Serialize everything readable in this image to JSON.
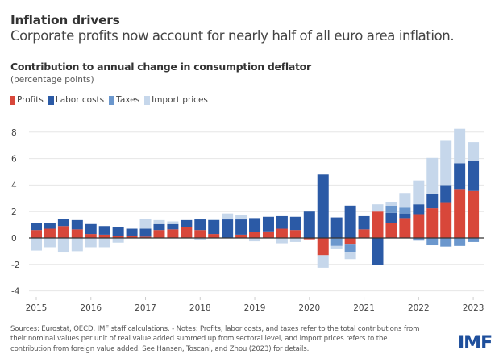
{
  "header": {
    "title": "Inflation drivers",
    "subtitle": "Corporate profits now account for nearly half of all euro area inflation."
  },
  "footer": {
    "note": "Sources: Eurostat, OECD, IMF staff calculations. - Notes: Profits, labor costs, and taxes refer to the total contributions from their nominal values per unit of real value added summed up from sectoral level, and import prices refers to the contribution from foreign value added. See Hansen, Toscani, and Zhou (2023) for details.",
    "logo": "IMF"
  },
  "chart_data": {
    "type": "bar",
    "stacked": true,
    "title": "Contribution to annual change in consumption deflator",
    "ylabel": "(percentage points)",
    "xlabel": "",
    "ylim": [
      -4,
      8
    ],
    "yticks": [
      -4,
      -2,
      0,
      2,
      4,
      6,
      8
    ],
    "xtick_labels": [
      "2015",
      "2016",
      "2017",
      "2018",
      "2019",
      "2020",
      "2021",
      "2022",
      "2023"
    ],
    "grid": true,
    "legend_position": "top-left",
    "categories": [
      "2015Q1",
      "2015Q2",
      "2015Q3",
      "2015Q4",
      "2016Q1",
      "2016Q2",
      "2016Q3",
      "2016Q4",
      "2017Q1",
      "2017Q2",
      "2017Q3",
      "2017Q4",
      "2018Q1",
      "2018Q2",
      "2018Q3",
      "2018Q4",
      "2019Q1",
      "2019Q2",
      "2019Q3",
      "2019Q4",
      "2020Q1",
      "2020Q2",
      "2020Q3",
      "2020Q4",
      "2021Q1",
      "2021Q2",
      "2021Q3",
      "2021Q4",
      "2022Q1",
      "2022Q2",
      "2022Q3",
      "2022Q4",
      "2023Q1"
    ],
    "series": [
      {
        "name": "Profits",
        "color": "#d8473a",
        "values": [
          0.6,
          0.7,
          0.9,
          0.65,
          0.3,
          0.25,
          0.15,
          0.15,
          0.1,
          0.6,
          0.65,
          0.8,
          0.6,
          0.3,
          0,
          0.25,
          0.45,
          0.5,
          0.7,
          0.6,
          -0.1,
          -1.3,
          0,
          -0.5,
          0.65,
          2.0,
          1.1,
          1.5,
          1.8,
          2.25,
          2.65,
          3.7,
          3.55
        ]
      },
      {
        "name": "Labor costs",
        "color": "#2b5aa6",
        "values": [
          0.5,
          0.45,
          0.55,
          0.7,
          0.75,
          0.65,
          0.65,
          0.55,
          0.6,
          0.45,
          0.4,
          0.55,
          0.8,
          1.05,
          1.4,
          1.15,
          1.05,
          1.1,
          0.95,
          1.0,
          2.0,
          4.8,
          1.55,
          2.45,
          1.0,
          -2.05,
          0.8,
          0.35,
          0.75,
          1.1,
          1.35,
          1.95,
          2.25
        ]
      },
      {
        "name": "Taxes",
        "color": "#6b97cd",
        "values": [
          0,
          0,
          0,
          0,
          0,
          0,
          0,
          0,
          0,
          0,
          0,
          0,
          0,
          0,
          0,
          0,
          0,
          0,
          0,
          0,
          0,
          0,
          -0.6,
          -0.6,
          0,
          0,
          0.55,
          0.45,
          -0.2,
          -0.55,
          -0.65,
          -0.6,
          -0.3
        ]
      },
      {
        "name": "Import prices",
        "color": "#c6d7eb",
        "values": [
          -0.95,
          -0.7,
          -1.1,
          -1.0,
          -0.7,
          -0.7,
          -0.35,
          0,
          0.75,
          0.3,
          0.2,
          0,
          -0.15,
          0.1,
          0.45,
          0.35,
          -0.25,
          0,
          -0.4,
          -0.3,
          0,
          -0.95,
          -0.25,
          -0.5,
          0,
          0.55,
          0.25,
          1.1,
          1.8,
          2.7,
          3.35,
          2.6,
          1.45
        ]
      }
    ]
  }
}
